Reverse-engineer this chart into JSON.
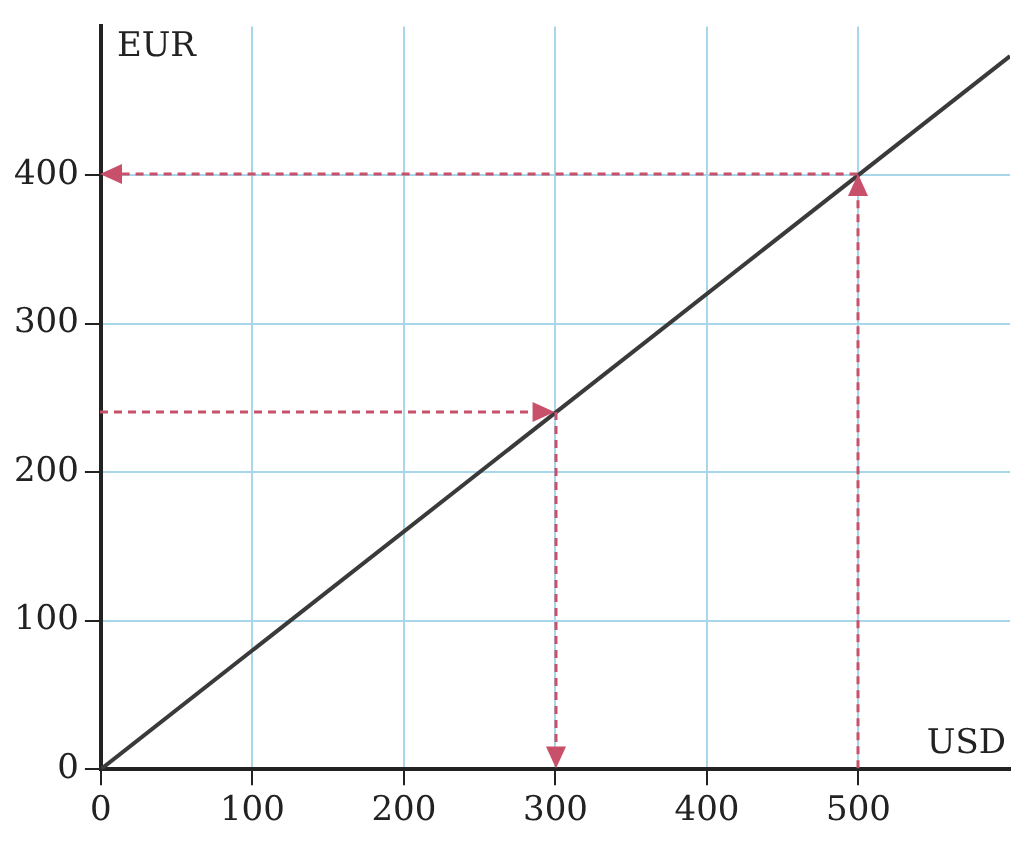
{
  "chart_data": {
    "type": "line",
    "xlabel": "USD",
    "ylabel": "EUR",
    "xlim": [
      0,
      600
    ],
    "ylim": [
      0,
      500
    ],
    "xticks": [
      0,
      100,
      200,
      300,
      400,
      500
    ],
    "yticks": [
      0,
      100,
      200,
      300,
      400
    ],
    "grid": true,
    "legend": false,
    "marker": "none",
    "series": [
      {
        "color": "#3a3a3a",
        "line_style": "solid",
        "x": [
          0,
          600
        ],
        "values": [
          0,
          480
        ]
      }
    ]
  }
}
